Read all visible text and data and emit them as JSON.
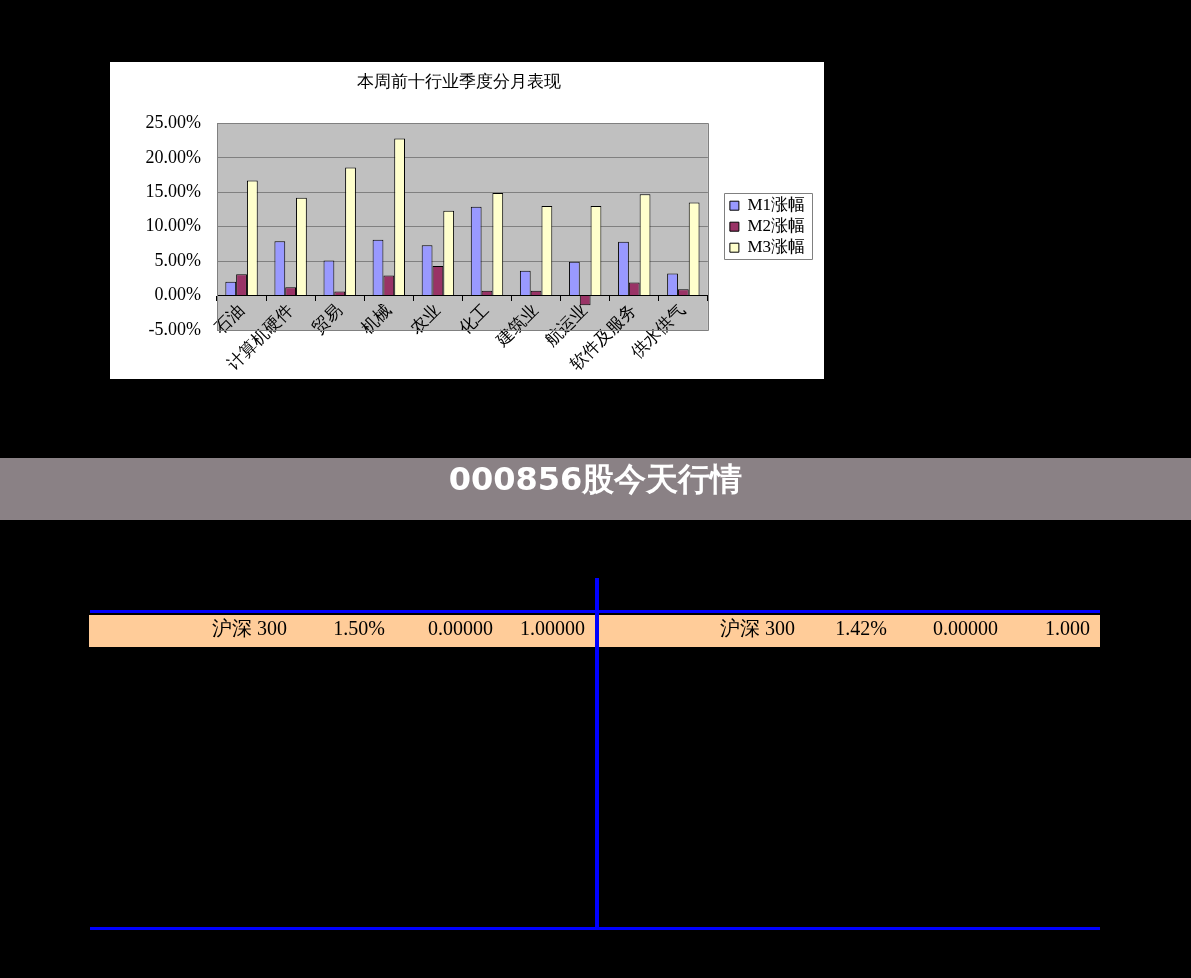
{
  "chart_data": [
    {
      "type": "bar",
      "title": "本周前十行业季度分月表现",
      "categories": [
        "石油",
        "计算机硬件",
        "贸易",
        "机械",
        "农业",
        "化工",
        "建筑业",
        "航运业",
        "软件及服务",
        "供水供气"
      ],
      "series": [
        {
          "name": "M1涨幅",
          "color": "#9999ff",
          "values": [
            2.0,
            7.9,
            5.1,
            8.1,
            7.3,
            12.9,
            3.6,
            4.9,
            7.8,
            3.2
          ]
        },
        {
          "name": "M2涨幅",
          "color": "#993366",
          "values": [
            3.1,
            1.2,
            0.6,
            2.9,
            4.3,
            0.7,
            0.7,
            -1.4,
            1.9,
            0.9
          ]
        },
        {
          "name": "M3涨幅",
          "color": "#ffffcc",
          "values": [
            16.7,
            14.2,
            18.6,
            22.8,
            12.3,
            14.9,
            13.0,
            13.0,
            14.7,
            13.5
          ]
        }
      ],
      "ylim": [
        -5,
        25
      ],
      "yticks": [
        {
          "value": -5,
          "label": "-5.00%"
        },
        {
          "value": 0,
          "label": "0.00%"
        },
        {
          "value": 5,
          "label": "5.00%"
        },
        {
          "value": 10,
          "label": "10.00%"
        },
        {
          "value": 15,
          "label": "15.00%"
        },
        {
          "value": 20,
          "label": "20.00%"
        },
        {
          "value": 25,
          "label": "25.00%"
        }
      ],
      "grid": "y",
      "legend": "right"
    },
    {
      "type": "other",
      "title": "000856股今天行情",
      "annotations": [
        "沪深 300",
        "1.50%",
        "0.00000",
        "1.00000",
        "沪深 300",
        "1.42%",
        "0.00000",
        "1.000"
      ]
    }
  ]
}
